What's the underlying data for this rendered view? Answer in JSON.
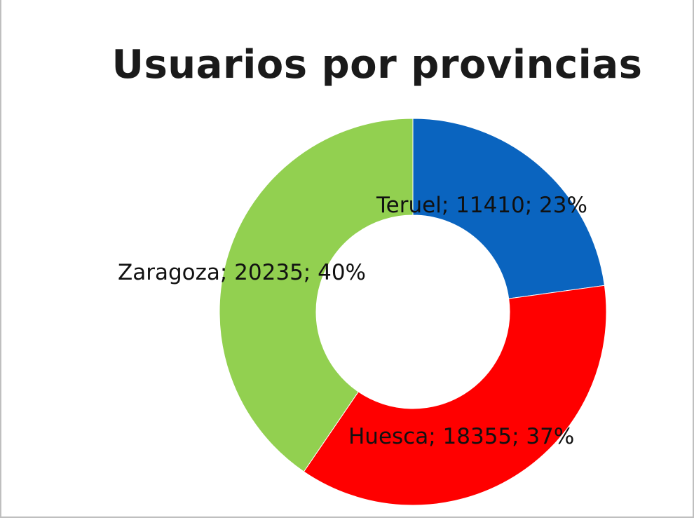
{
  "chart_data": {
    "type": "pie",
    "title": "Usuarios por provincias",
    "series": [
      {
        "categories": [
          "Teruel",
          "Huesca",
          "Zaragoza"
        ],
        "values": [
          11410,
          18355,
          20235
        ],
        "percent_labels": [
          "23%",
          "37%",
          "40%"
        ],
        "colors": [
          "#0a64bf",
          "#ff0000",
          "#92d050"
        ]
      }
    ],
    "data_labels": [
      "Teruel; 11410; 23%",
      "Huesca; 18355; 37%",
      "Zaragoza; 20235; 40%"
    ],
    "donut": true,
    "legend": "none"
  }
}
